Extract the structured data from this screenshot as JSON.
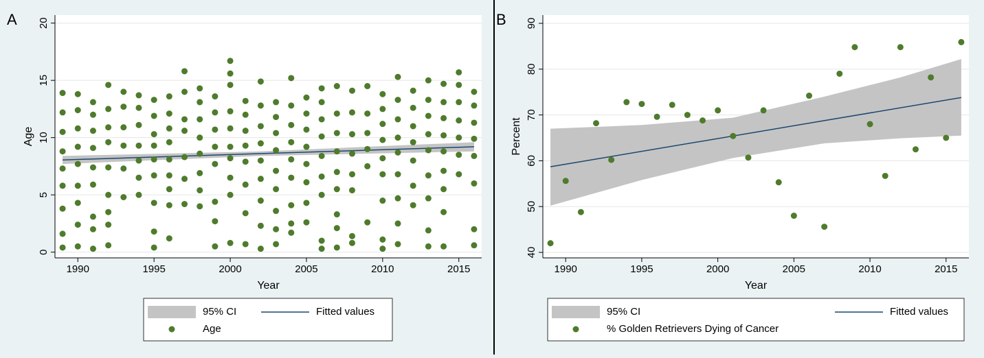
{
  "chart_data": [
    {
      "type": "scatter",
      "panel_label": "A",
      "x_label": "Year",
      "y_label": "Age",
      "xlim": [
        1988.5,
        2016.5
      ],
      "ylim": [
        -0.5,
        20.7
      ],
      "xticks": [
        1990,
        1995,
        2000,
        2005,
        2010,
        2015
      ],
      "yticks": [
        0,
        5,
        10,
        15,
        20
      ],
      "grid": true,
      "series": [
        {
          "name": "95% CI",
          "type": "band",
          "color": "#c4c4c4",
          "x": [
            1989,
            2002,
            2016
          ],
          "lower": [
            7.7,
            8.4,
            8.8
          ],
          "upper": [
            8.4,
            8.8,
            9.6
          ]
        },
        {
          "name": "Fitted values",
          "type": "line",
          "color": "#1a476f",
          "x": [
            1989,
            2016
          ],
          "values": [
            8.05,
            9.2
          ]
        },
        {
          "name": "Age",
          "type": "scatter",
          "color": "#4f7b2c",
          "x": [
            1989,
            1989,
            1989,
            1989,
            1989,
            1989,
            1989,
            1989,
            1989,
            1990,
            1990,
            1990,
            1990,
            1990,
            1990,
            1990,
            1990,
            1990,
            1991,
            1991,
            1991,
            1991,
            1991,
            1991,
            1991,
            1991,
            1991,
            1992,
            1992,
            1992,
            1992,
            1992,
            1992,
            1992,
            1992,
            1992,
            1993,
            1993,
            1993,
            1993,
            1993,
            1993,
            1994,
            1994,
            1994,
            1994,
            1994,
            1994,
            1994,
            1995,
            1995,
            1995,
            1995,
            1995,
            1995,
            1995,
            1995,
            1995,
            1996,
            1996,
            1996,
            1996,
            1996,
            1996,
            1996,
            1996,
            1996,
            1997,
            1997,
            1997,
            1997,
            1997,
            1997,
            1997,
            1998,
            1998,
            1998,
            1998,
            1998,
            1998,
            1998,
            1998,
            1999,
            1999,
            1999,
            1999,
            1999,
            1999,
            1999,
            1999,
            2000,
            2000,
            2000,
            2000,
            2000,
            2000,
            2000,
            2000,
            2000,
            2000,
            2001,
            2001,
            2001,
            2001,
            2001,
            2001,
            2001,
            2001,
            2002,
            2002,
            2002,
            2002,
            2002,
            2002,
            2002,
            2002,
            2002,
            2003,
            2003,
            2003,
            2003,
            2003,
            2003,
            2003,
            2003,
            2003,
            2004,
            2004,
            2004,
            2004,
            2004,
            2004,
            2004,
            2004,
            2004,
            2005,
            2005,
            2005,
            2005,
            2005,
            2005,
            2005,
            2005,
            2006,
            2006,
            2006,
            2006,
            2006,
            2006,
            2006,
            2006,
            2006,
            2007,
            2007,
            2007,
            2007,
            2007,
            2007,
            2007,
            2007,
            2007,
            2008,
            2008,
            2008,
            2008,
            2008,
            2008,
            2008,
            2008,
            2009,
            2009,
            2009,
            2009,
            2009,
            2009,
            2010,
            2010,
            2010,
            2010,
            2010,
            2010,
            2010,
            2010,
            2010,
            2011,
            2011,
            2011,
            2011,
            2011,
            2011,
            2011,
            2011,
            2011,
            2012,
            2012,
            2012,
            2012,
            2012,
            2012,
            2012,
            2013,
            2013,
            2013,
            2013,
            2013,
            2013,
            2013,
            2013,
            2013,
            2014,
            2014,
            2014,
            2014,
            2014,
            2014,
            2014,
            2014,
            2014,
            2015,
            2015,
            2015,
            2015,
            2015,
            2015,
            2015,
            2016,
            2016,
            2016,
            2016,
            2016,
            2016,
            2016,
            2016
          ],
          "values": [
            13.9,
            12.2,
            10.5,
            8.8,
            7.3,
            5.8,
            3.8,
            1.6,
            0.4,
            13.8,
            12.4,
            10.8,
            9.2,
            7.7,
            5.8,
            4.3,
            2.4,
            0.5,
            13.1,
            12.0,
            10.6,
            9.1,
            7.4,
            5.9,
            3.1,
            2.0,
            0.3,
            14.6,
            12.5,
            10.9,
            9.6,
            7.4,
            5.0,
            3.5,
            2.4,
            0.6,
            14.0,
            12.7,
            10.9,
            9.3,
            7.3,
            4.8,
            13.7,
            12.6,
            11.1,
            9.3,
            8.0,
            6.5,
            5.0,
            13.3,
            11.9,
            10.3,
            9.3,
            8.1,
            6.7,
            4.3,
            1.8,
            0.4,
            13.6,
            12.1,
            10.8,
            9.6,
            8.1,
            6.7,
            5.5,
            4.1,
            1.2,
            15.8,
            14.0,
            11.6,
            10.6,
            8.3,
            6.4,
            4.2,
            14.3,
            13.1,
            11.6,
            10.0,
            8.6,
            6.9,
            5.4,
            4.0,
            13.6,
            12.2,
            10.7,
            9.2,
            7.7,
            4.4,
            2.7,
            0.5,
            16.7,
            15.6,
            14.6,
            12.3,
            10.8,
            9.2,
            8.2,
            6.5,
            5.0,
            0.8,
            13.2,
            12.0,
            10.6,
            9.3,
            7.9,
            5.9,
            3.4,
            0.7,
            14.9,
            12.8,
            11.0,
            9.5,
            8.0,
            6.4,
            4.5,
            2.3,
            0.3,
            13.1,
            11.8,
            10.4,
            8.9,
            7.1,
            5.5,
            3.6,
            2.0,
            0.7,
            15.2,
            12.8,
            11.1,
            9.6,
            8.1,
            6.5,
            4.1,
            2.5,
            1.7,
            13.5,
            12.1,
            10.7,
            9.2,
            7.7,
            6.1,
            4.3,
            2.6,
            14.3,
            13.1,
            11.6,
            10.1,
            8.4,
            6.6,
            5.0,
            1.0,
            0.3,
            14.5,
            12.1,
            10.4,
            8.8,
            7.0,
            5.5,
            3.3,
            2.1,
            0.4,
            14.1,
            12.2,
            10.3,
            8.6,
            6.8,
            5.4,
            1.4,
            0.8,
            14.5,
            12.1,
            10.4,
            9.0,
            7.5,
            2.6,
            13.8,
            12.5,
            11.2,
            9.8,
            8.2,
            6.8,
            4.5,
            1.1,
            0.3,
            15.3,
            13.3,
            11.6,
            10.0,
            8.7,
            6.8,
            4.7,
            2.5,
            0.7,
            14.1,
            12.6,
            11.0,
            9.6,
            8.0,
            5.8,
            4.1,
            15.0,
            13.3,
            11.9,
            10.3,
            8.9,
            6.7,
            4.7,
            1.9,
            0.5,
            14.7,
            13.1,
            11.7,
            10.2,
            8.8,
            7.1,
            5.5,
            3.5,
            0.5,
            15.7,
            14.6,
            13.1,
            11.5,
            10.0,
            8.5,
            6.8,
            14.0,
            12.8,
            11.3,
            9.9,
            8.4,
            6.0,
            2.0,
            0.6
          ]
        }
      ]
    },
    {
      "type": "scatter",
      "panel_label": "B",
      "x_label": "Year",
      "y_label": "Percent",
      "xlim": [
        1988.5,
        2016.5
      ],
      "ylim": [
        38.8,
        91.8
      ],
      "xticks": [
        1990,
        1995,
        2000,
        2005,
        2010,
        2015
      ],
      "yticks": [
        40,
        50,
        60,
        70,
        80,
        90
      ],
      "grid": true,
      "series": [
        {
          "name": "95% CI",
          "type": "band",
          "color": "#c4c4c4",
          "x": [
            1989,
            1995,
            2001,
            2007,
            2012,
            2016
          ],
          "lower": [
            50.2,
            55.8,
            60.6,
            63.8,
            64.9,
            65.5
          ],
          "upper": [
            67.0,
            67.8,
            69.4,
            74.0,
            78.2,
            82.2
          ]
        },
        {
          "name": "Fitted values",
          "type": "line",
          "color": "#1a476f",
          "x": [
            1989,
            2016
          ],
          "values": [
            58.7,
            73.8
          ]
        },
        {
          "name": "% Golden Retrievers Dying of Cancer",
          "type": "scatter",
          "color": "#4f7b2c",
          "x": [
            1989,
            1990,
            1991,
            1992,
            1993,
            1994,
            1995,
            1996,
            1997,
            1998,
            1999,
            2000,
            2001,
            2002,
            2003,
            2004,
            2005,
            2006,
            2007,
            2008,
            2009,
            2010,
            2011,
            2012,
            2013,
            2014,
            2015,
            2016
          ],
          "values": [
            42.0,
            55.6,
            48.8,
            68.2,
            60.2,
            72.8,
            72.4,
            69.6,
            72.2,
            70.0,
            68.8,
            71.0,
            65.4,
            60.7,
            71.0,
            55.3,
            48.0,
            74.2,
            45.6,
            79.0,
            84.8,
            68.0,
            56.7,
            84.8,
            62.5,
            78.2,
            65.0,
            85.9
          ]
        }
      ]
    }
  ]
}
